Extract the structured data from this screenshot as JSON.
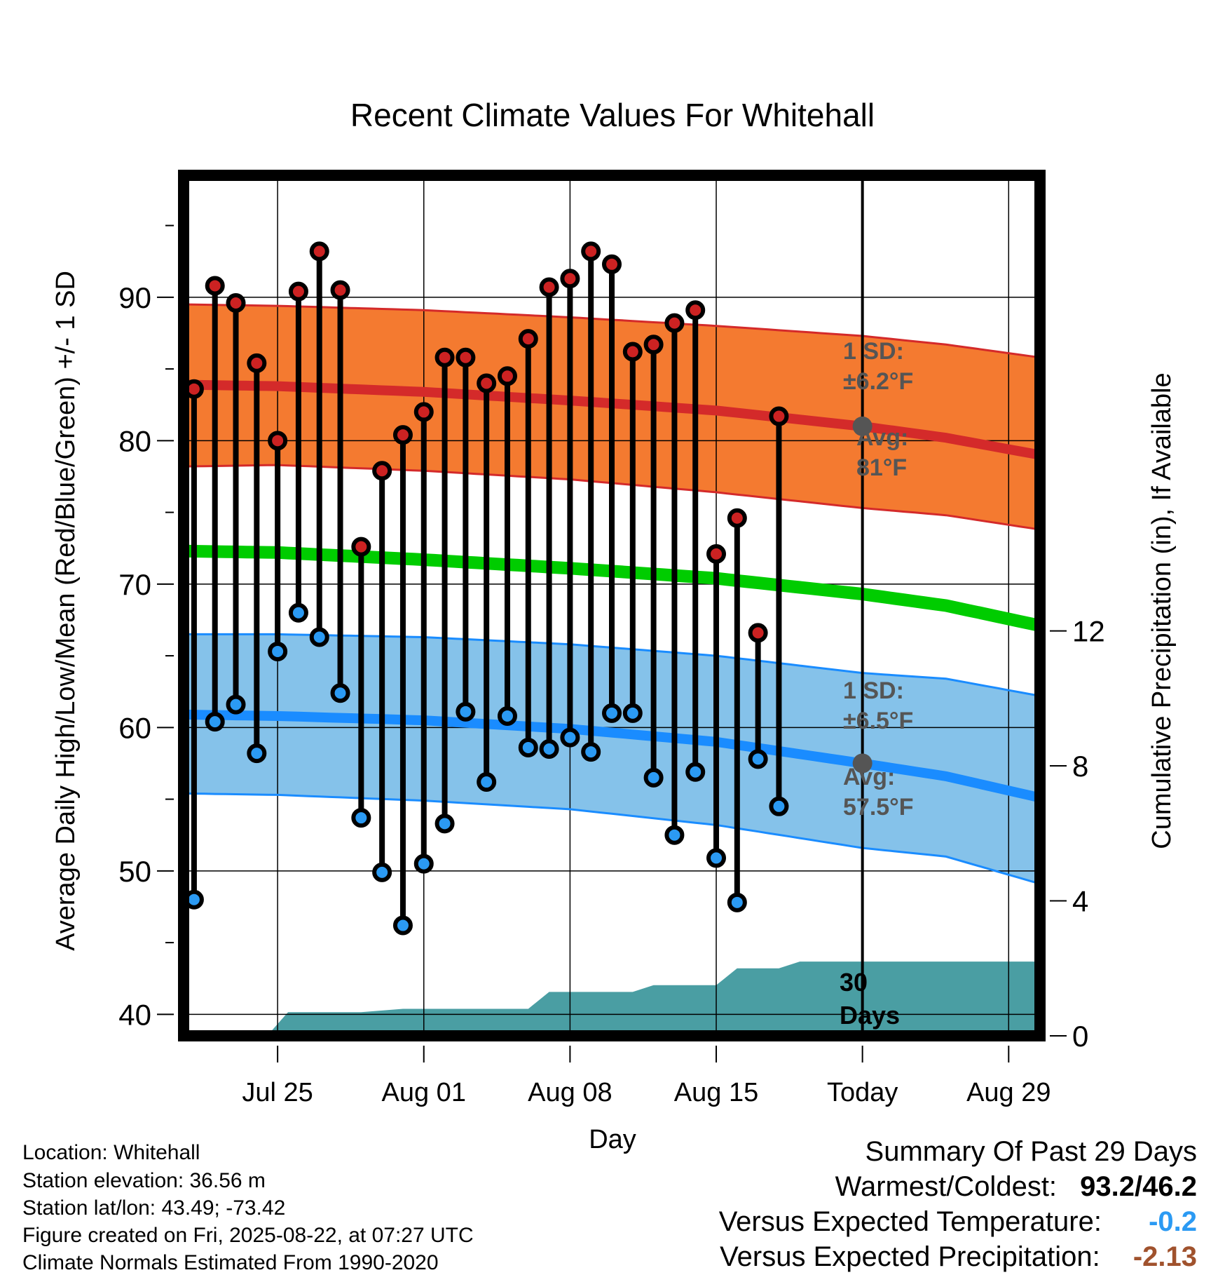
{
  "chart_data": {
    "type": "line",
    "title": "Recent Climate Values For Whitehall",
    "xlabel": "Day",
    "ylabel_left": "Average Daily High/Low/Mean (Red/Blue/Green) +/- 1 SD",
    "ylabel_right": "Cumulative Precipitation (in), If Available",
    "y_left_ticks": [
      "40",
      "50",
      "60",
      "70",
      "80",
      "90"
    ],
    "y_left_range": [
      38.5,
      98.5
    ],
    "y_right_ticks": [
      "0",
      "4",
      "8",
      "12"
    ],
    "y_right_range": [
      0,
      25.5
    ],
    "x_day_range": [
      -28.5,
      12.5
    ],
    "x_ticks": [
      {
        "day": -24,
        "label": "Jul 25"
      },
      {
        "day": -17,
        "label": "Aug 01"
      },
      {
        "day": -10,
        "label": "Aug 08"
      },
      {
        "day": -3,
        "label": "Aug 15"
      },
      {
        "day": 4,
        "label": "Today"
      },
      {
        "day": 11,
        "label": "Aug 29"
      }
    ],
    "today_day": 4,
    "normals": {
      "high_avg": [
        [
          -28.5,
          83.9
        ],
        [
          -24,
          83.8
        ],
        [
          -17,
          83.4
        ],
        [
          -10,
          82.8
        ],
        [
          -3,
          82.1
        ],
        [
          4,
          81.0
        ],
        [
          8,
          80.2
        ],
        [
          12.5,
          79.0
        ]
      ],
      "high_upper": [
        [
          -28.5,
          89.5
        ],
        [
          -24,
          89.4
        ],
        [
          -17,
          89.1
        ],
        [
          -10,
          88.6
        ],
        [
          -3,
          88.0
        ],
        [
          4,
          87.3
        ],
        [
          8,
          86.7
        ],
        [
          12.5,
          85.8
        ]
      ],
      "high_lower": [
        [
          -28.5,
          78.2
        ],
        [
          -24,
          78.3
        ],
        [
          -17,
          77.9
        ],
        [
          -10,
          77.3
        ],
        [
          -3,
          76.4
        ],
        [
          4,
          75.3
        ],
        [
          8,
          74.8
        ],
        [
          12.5,
          73.8
        ]
      ],
      "mean": [
        [
          -28.5,
          72.3
        ],
        [
          -24,
          72.2
        ],
        [
          -17,
          71.7
        ],
        [
          -10,
          71.1
        ],
        [
          -3,
          70.4
        ],
        [
          4,
          69.3
        ],
        [
          8,
          68.5
        ],
        [
          12.5,
          67.1
        ]
      ],
      "low_avg": [
        [
          -28.5,
          60.9
        ],
        [
          -24,
          60.8
        ],
        [
          -17,
          60.5
        ],
        [
          -10,
          59.9
        ],
        [
          -3,
          59.0
        ],
        [
          4,
          57.5
        ],
        [
          8,
          56.6
        ],
        [
          12.5,
          55.1
        ]
      ],
      "low_upper": [
        [
          -28.5,
          66.5
        ],
        [
          -24,
          66.5
        ],
        [
          -17,
          66.3
        ],
        [
          -10,
          65.8
        ],
        [
          -3,
          65.0
        ],
        [
          4,
          63.8
        ],
        [
          8,
          63.4
        ],
        [
          12.5,
          62.2
        ]
      ],
      "low_lower": [
        [
          -28.5,
          55.4
        ],
        [
          -24,
          55.3
        ],
        [
          -17,
          54.9
        ],
        [
          -10,
          54.3
        ],
        [
          -3,
          53.2
        ],
        [
          4,
          51.6
        ],
        [
          8,
          51.0
        ],
        [
          12.5,
          49.1
        ]
      ]
    },
    "highs": [
      83.6,
      90.8,
      89.6,
      85.4,
      80.0,
      90.4,
      93.2,
      90.5,
      72.6,
      77.9,
      80.4,
      82.0,
      85.8,
      85.8,
      84.0,
      84.5,
      87.1,
      90.7,
      91.3,
      93.2,
      92.3,
      86.2,
      86.7,
      88.2,
      89.1,
      72.1,
      74.6,
      66.6,
      81.7
    ],
    "lows": [
      48.0,
      60.4,
      61.6,
      58.2,
      65.3,
      68.0,
      66.3,
      62.4,
      53.7,
      49.9,
      46.2,
      50.5,
      53.3,
      61.1,
      56.2,
      60.8,
      58.6,
      58.5,
      59.3,
      58.3,
      61.0,
      61.0,
      56.5,
      52.5,
      56.9,
      50.9,
      47.8,
      57.8,
      54.5
    ],
    "precip_cumulative": [
      [
        -24.5,
        0
      ],
      [
        -23.5,
        0.7
      ],
      [
        -20,
        0.7
      ],
      [
        -18,
        0.8
      ],
      [
        -12,
        0.8
      ],
      [
        -11,
        1.3
      ],
      [
        -7,
        1.3
      ],
      [
        -6,
        1.5
      ],
      [
        -3,
        1.5
      ],
      [
        -2,
        2.0
      ],
      [
        0,
        2.0
      ],
      [
        1,
        2.2
      ],
      [
        12.5,
        2.2
      ]
    ],
    "annotations": {
      "high_sd": "1 SD:",
      "high_sd_value": "±6.2°F",
      "high_avg_label": "Avg:",
      "high_avg_value": "81°F",
      "low_sd": "1 SD:",
      "low_sd_value": "±6.5°F",
      "low_avg_label": "Avg:",
      "low_avg_value": "57.5°F",
      "days_number": "30",
      "days_word": "Days"
    },
    "colors": {
      "high_band": "#f47a30",
      "high_line": "#d42a2a",
      "mean_line": "#00cc00",
      "low_band": "#85c2ea",
      "low_line": "#1a8cff",
      "precip": "#4a9ea3",
      "high_marker": "#cc2222",
      "low_marker": "#2b9af3",
      "today_marker": "#555555",
      "annotation_text": "#555555"
    }
  },
  "info": {
    "location": "Location: Whitehall",
    "elevation": "Station elevation: 36.56 m",
    "latlon": "Station lat/lon: 43.49; -73.42",
    "created": "Figure created on Fri, 2025-08-22, at 07:27 UTC",
    "normals": "Climate Normals Estimated From 1990-2020"
  },
  "summary": {
    "title": "Summary Of Past 29 Days",
    "warmest_label": "Warmest/Coldest:",
    "warmest_value": "93.2/46.2",
    "temp_label": "Versus Expected Temperature:",
    "temp_value": "-0.2",
    "temp_color": "#2b9af3",
    "precip_label": "Versus Expected Precipitation:",
    "precip_value": "-2.13",
    "precip_color": "#a0522d"
  }
}
